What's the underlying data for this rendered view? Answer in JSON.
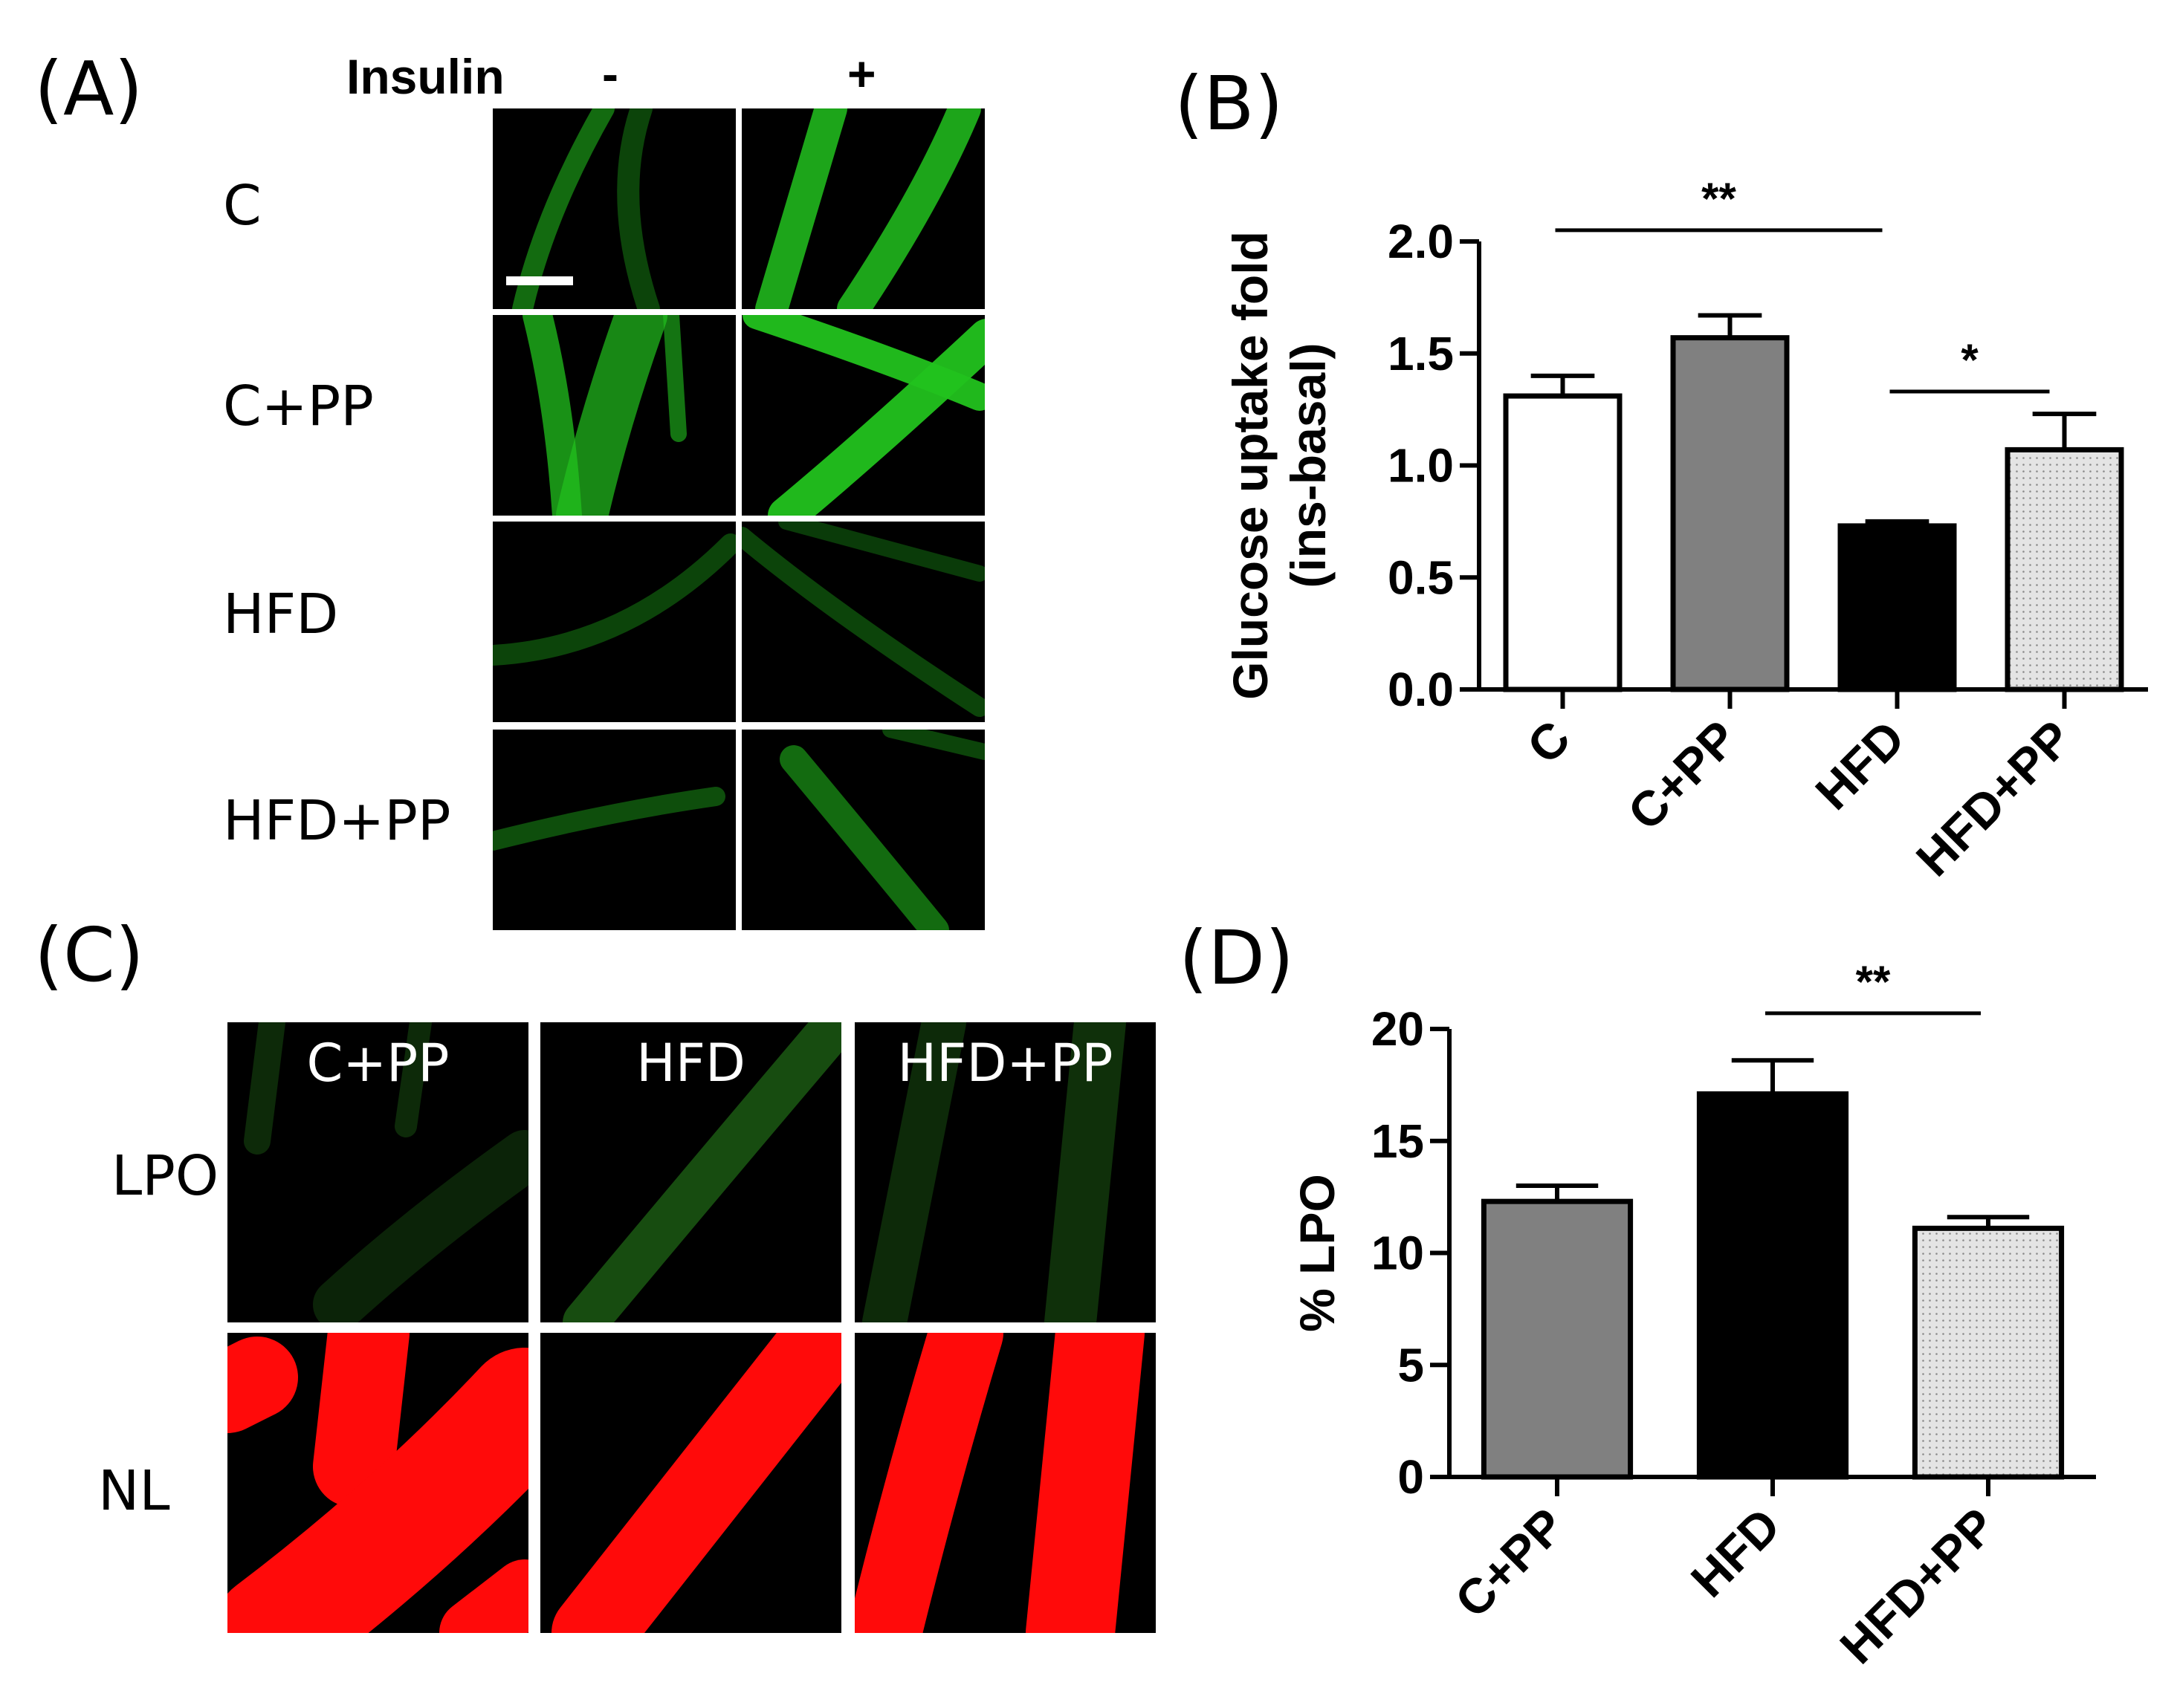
{
  "panel_a": {
    "label": "(A)",
    "insulin_label": "Insulin",
    "col_labels": [
      "-",
      "+"
    ],
    "row_labels": [
      "C",
      "C+PP",
      "HFD",
      "HFD+PP"
    ],
    "stain_color": "#22c21e"
  },
  "panel_c": {
    "label": "(C)",
    "col_labels": [
      "C+PP",
      "HFD",
      "HFD+PP"
    ],
    "row_labels": [
      "LPO",
      "NL"
    ],
    "lpo_color": "#2a8a1e",
    "nl_color": "#ff0a0a"
  },
  "chart_data": [
    {
      "panel": "(B)",
      "type": "bar",
      "ylabel": [
        "Glucose uptake fold",
        "(ins-basal)"
      ],
      "categories": [
        "C",
        "C+PP",
        "HFD",
        "HFD+PP"
      ],
      "values": [
        1.31,
        1.57,
        0.73,
        1.07
      ],
      "errors": [
        0.09,
        0.1,
        0.02,
        0.16
      ],
      "fills": [
        "#ffffff",
        "#808080",
        "#000000",
        "#d8d8d8"
      ],
      "dotted": [
        false,
        false,
        false,
        true
      ],
      "ylim": [
        0,
        2.0
      ],
      "yticks": [
        "0.0",
        "0.5",
        "1.0",
        "1.5",
        "2.0"
      ],
      "significance": [
        {
          "from": 0,
          "to": 2,
          "label": "**",
          "y": 2.05
        },
        {
          "from": 2,
          "to": 3,
          "label": "*",
          "y": 1.33
        }
      ],
      "grid": false
    },
    {
      "panel": "(D)",
      "type": "bar",
      "ylabel": [
        "% LPO"
      ],
      "categories": [
        "C+PP",
        "HFD",
        "HFD+PP"
      ],
      "values": [
        12.3,
        17.1,
        11.1
      ],
      "errors": [
        0.7,
        1.5,
        0.5
      ],
      "fills": [
        "#808080",
        "#000000",
        "#d8d8d8"
      ],
      "dotted": [
        false,
        false,
        true
      ],
      "ylim": [
        0,
        20
      ],
      "yticks": [
        "0",
        "5",
        "10",
        "15",
        "20"
      ],
      "significance": [
        {
          "from": 1,
          "to": 2,
          "label": "**",
          "y": 20.7
        }
      ],
      "grid": false
    }
  ]
}
